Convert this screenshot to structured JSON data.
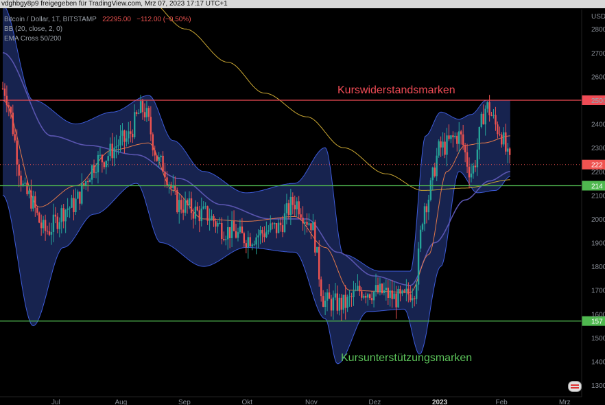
{
  "header": {
    "text": "vdghbgy8p9 freigegeben für TradingView.com, Mrz 07, 2023 17:17 UTC+1"
  },
  "legend": {
    "symbol": "Bitcoin / Dollar, 1T, BITSTAMP",
    "price": "22295.00",
    "change": "−112.00 (−0.50%)",
    "bb": "BB (20, close, 2, 0)",
    "ema": "EMA Cross 50/200"
  },
  "annotations": {
    "resistance_label": "Kurswiderstandsmarken",
    "support_label": "Kursunterstützungsmarken"
  },
  "colors": {
    "background": "#000000",
    "up": "#26a69a",
    "down": "#ef5350",
    "band_fill": "#2a3f8f",
    "band_line": "#3d5bd9",
    "bb_basis": "#e3794a",
    "ema50": "#5a55b0",
    "ema200": "#c9a632",
    "resistance": "#ef4b55",
    "support": "#4fb84f",
    "axis_text": "#8a8f98"
  },
  "chart_data": {
    "type": "candlestick",
    "currency": "USD",
    "y_ticks": [
      1300,
      1400,
      1500,
      1600,
      1700,
      1800,
      1900,
      2000,
      2100,
      2200,
      2300,
      2400,
      2500,
      2600,
      2700,
      2800
    ],
    "y_tick_labels": [
      "1300",
      "1400",
      "1500",
      "1600",
      "1700",
      "1800",
      "1900",
      "2000",
      "2100",
      "2200",
      "2300",
      "2400",
      "2500",
      "2600",
      "2700",
      "2800"
    ],
    "y_range": [
      1260,
      2900
    ],
    "x_labels": [
      "Jul",
      "Aug",
      "Sep",
      "Okt",
      "Nov",
      "Dez",
      "2023",
      "Feb",
      "Mrz"
    ],
    "horizontal_levels": [
      {
        "value": 2500,
        "label": "250",
        "kind": "resistance"
      },
      {
        "value": 2140,
        "label": "214",
        "kind": "support"
      },
      {
        "value": 1570,
        "label": "157",
        "kind": "support"
      }
    ],
    "last_price": {
      "value": 2229,
      "label": "222"
    },
    "close_path": [
      {
        "m": 0.0,
        "v": 2550
      },
      {
        "m": 0.4,
        "v": 2100
      },
      {
        "m": 0.7,
        "v": 1950
      },
      {
        "m": 1.1,
        "v": 2050
      },
      {
        "m": 1.6,
        "v": 2250
      },
      {
        "m": 2.0,
        "v": 2330
      },
      {
        "m": 2.3,
        "v": 2460
      },
      {
        "m": 2.6,
        "v": 2230
      },
      {
        "m": 2.9,
        "v": 2060
      },
      {
        "m": 3.3,
        "v": 2020
      },
      {
        "m": 3.7,
        "v": 1950
      },
      {
        "m": 4.0,
        "v": 1920
      },
      {
        "m": 4.5,
        "v": 1960
      },
      {
        "m": 4.8,
        "v": 2070
      },
      {
        "m": 5.05,
        "v": 1990
      },
      {
        "m": 5.3,
        "v": 1650
      },
      {
        "m": 5.6,
        "v": 1640
      },
      {
        "m": 5.9,
        "v": 1700
      },
      {
        "m": 6.2,
        "v": 1690
      },
      {
        "m": 6.55,
        "v": 1660
      },
      {
        "m": 6.75,
        "v": 1700
      },
      {
        "m": 6.95,
        "v": 2070
      },
      {
        "m": 7.2,
        "v": 2300
      },
      {
        "m": 7.5,
        "v": 2350
      },
      {
        "m": 7.7,
        "v": 2200
      },
      {
        "m": 7.95,
        "v": 2470
      },
      {
        "m": 8.15,
        "v": 2380
      },
      {
        "m": 8.35,
        "v": 2229
      }
    ],
    "bb_upper_path": [
      {
        "m": 0.0,
        "v": 2900
      },
      {
        "m": 0.5,
        "v": 2500
      },
      {
        "m": 1.2,
        "v": 2400
      },
      {
        "m": 1.8,
        "v": 2450
      },
      {
        "m": 2.4,
        "v": 2520
      },
      {
        "m": 2.8,
        "v": 2330
      },
      {
        "m": 3.3,
        "v": 2200
      },
      {
        "m": 4.0,
        "v": 2110
      },
      {
        "m": 4.8,
        "v": 2150
      },
      {
        "m": 5.3,
        "v": 2300
      },
      {
        "m": 5.6,
        "v": 1850
      },
      {
        "m": 6.2,
        "v": 1780
      },
      {
        "m": 6.7,
        "v": 1780
      },
      {
        "m": 6.95,
        "v": 2350
      },
      {
        "m": 7.2,
        "v": 2450
      },
      {
        "m": 7.5,
        "v": 2420
      },
      {
        "m": 7.7,
        "v": 2440
      },
      {
        "m": 7.95,
        "v": 2500
      },
      {
        "m": 8.35,
        "v": 2500
      }
    ],
    "bb_lower_path": [
      {
        "m": 0.0,
        "v": 2100
      },
      {
        "m": 0.5,
        "v": 1550
      },
      {
        "m": 1.0,
        "v": 1880
      },
      {
        "m": 1.5,
        "v": 2020
      },
      {
        "m": 2.2,
        "v": 2150
      },
      {
        "m": 2.6,
        "v": 1900
      },
      {
        "m": 3.3,
        "v": 1800
      },
      {
        "m": 4.0,
        "v": 1880
      },
      {
        "m": 4.8,
        "v": 1860
      },
      {
        "m": 5.3,
        "v": 1580
      },
      {
        "m": 5.5,
        "v": 1390
      },
      {
        "m": 6.0,
        "v": 1610
      },
      {
        "m": 6.6,
        "v": 1620
      },
      {
        "m": 6.85,
        "v": 1430
      },
      {
        "m": 7.2,
        "v": 1800
      },
      {
        "m": 7.5,
        "v": 2200
      },
      {
        "m": 7.8,
        "v": 2110
      },
      {
        "m": 8.1,
        "v": 2120
      },
      {
        "m": 8.35,
        "v": 2180
      }
    ],
    "bb_basis_path": [
      {
        "m": 0.0,
        "v": 2500
      },
      {
        "m": 0.6,
        "v": 2050
      },
      {
        "m": 1.2,
        "v": 2140
      },
      {
        "m": 1.8,
        "v": 2290
      },
      {
        "m": 2.4,
        "v": 2320
      },
      {
        "m": 2.8,
        "v": 2120
      },
      {
        "m": 3.3,
        "v": 2000
      },
      {
        "m": 4.0,
        "v": 1990
      },
      {
        "m": 4.8,
        "v": 2010
      },
      {
        "m": 5.3,
        "v": 1880
      },
      {
        "m": 5.7,
        "v": 1700
      },
      {
        "m": 6.2,
        "v": 1695
      },
      {
        "m": 6.7,
        "v": 1690
      },
      {
        "m": 7.0,
        "v": 1850
      },
      {
        "m": 7.3,
        "v": 2200
      },
      {
        "m": 7.6,
        "v": 2310
      },
      {
        "m": 7.9,
        "v": 2320
      },
      {
        "m": 8.35,
        "v": 2350
      }
    ],
    "ema50_path": [
      {
        "m": 0.0,
        "v": 2700
      },
      {
        "m": 0.8,
        "v": 2350
      },
      {
        "m": 1.4,
        "v": 2310
      },
      {
        "m": 2.2,
        "v": 2270
      },
      {
        "m": 2.9,
        "v": 2170
      },
      {
        "m": 3.6,
        "v": 2060
      },
      {
        "m": 4.4,
        "v": 2000
      },
      {
        "m": 5.0,
        "v": 2000
      },
      {
        "m": 5.5,
        "v": 1860
      },
      {
        "m": 6.1,
        "v": 1760
      },
      {
        "m": 6.7,
        "v": 1720
      },
      {
        "m": 7.1,
        "v": 1900
      },
      {
        "m": 7.6,
        "v": 2080
      },
      {
        "m": 8.0,
        "v": 2160
      },
      {
        "m": 8.35,
        "v": 2200
      }
    ],
    "ema200_path": [
      {
        "m": 2.4,
        "v": 2920
      },
      {
        "m": 3.0,
        "v": 2800
      },
      {
        "m": 3.7,
        "v": 2660
      },
      {
        "m": 4.3,
        "v": 2530
      },
      {
        "m": 5.0,
        "v": 2430
      },
      {
        "m": 5.6,
        "v": 2300
      },
      {
        "m": 6.3,
        "v": 2190
      },
      {
        "m": 6.9,
        "v": 2120
      },
      {
        "m": 7.6,
        "v": 2130
      },
      {
        "m": 8.35,
        "v": 2165
      }
    ]
  }
}
